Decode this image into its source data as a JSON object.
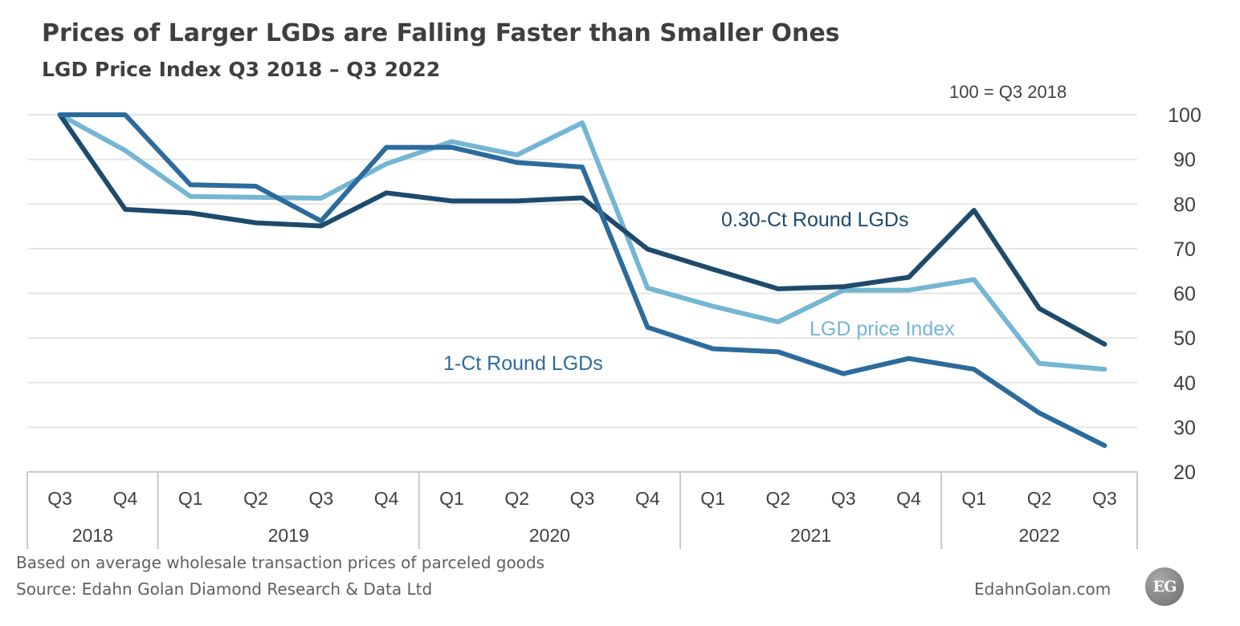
{
  "title": "Prices of Larger LGDs are Falling Faster than Smaller Ones",
  "subtitle": "LGD Price Index Q3 2018 – Q3 2022",
  "base_note": "100 = Q3 2018",
  "footnote": "Based on average wholesale transaction prices of parceled goods",
  "source": "Source: Edahn Golan Diamond Research & Data Ltd",
  "brand": {
    "text": "EdahnGolan.com",
    "logo": "EG"
  },
  "chart_data": {
    "type": "line",
    "categories": [
      "Q3",
      "Q4",
      "Q1",
      "Q2",
      "Q3",
      "Q4",
      "Q1",
      "Q2",
      "Q3",
      "Q4",
      "Q1",
      "Q2",
      "Q3",
      "Q4",
      "Q1",
      "Q2",
      "Q3"
    ],
    "year_groups": [
      {
        "label": "2018",
        "span": 2
      },
      {
        "label": "2019",
        "span": 4
      },
      {
        "label": "2020",
        "span": 4
      },
      {
        "label": "2021",
        "span": 4
      },
      {
        "label": "2022",
        "span": 3
      }
    ],
    "y_ticks": [
      20,
      30,
      40,
      50,
      60,
      70,
      80,
      90,
      100
    ],
    "ylim": [
      20,
      100
    ],
    "y_axis_position": "right",
    "grid": true,
    "legend": "inline labels",
    "series": [
      {
        "name": "LGD price Index",
        "color": "#74b6d3",
        "values": [
          100,
          92,
          81.7,
          81.5,
          81.3,
          89,
          94,
          91,
          98.2,
          61.2,
          57.1,
          53.6,
          60.7,
          60.7,
          63.1,
          44.3,
          43
        ]
      },
      {
        "name": "0.30-Ct Round LGDs",
        "color": "#1e4a6c",
        "values": [
          100,
          78.8,
          78,
          75.8,
          75.1,
          82.5,
          80.7,
          80.7,
          81.4,
          69.9,
          65.4,
          61,
          61.5,
          63.6,
          78.6,
          56.6,
          48.6
        ]
      },
      {
        "name": "1-Ct Round LGDs",
        "color": "#2c6b9c",
        "values": [
          100,
          100,
          84.3,
          84,
          76.2,
          92.7,
          92.7,
          89.3,
          88.3,
          52.4,
          47.6,
          46.9,
          42,
          45.4,
          43,
          33.2,
          25.9
        ]
      }
    ]
  }
}
